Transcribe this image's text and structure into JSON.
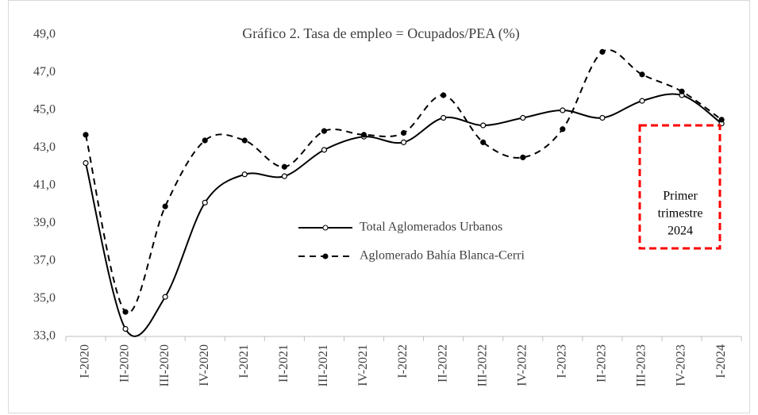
{
  "chart_data": {
    "type": "line",
    "title": "Gráfico  2. Tasa de empleo  = Ocupados/PEA  (%)",
    "categories": [
      "I-2020",
      "II-2020",
      "III-2020",
      "IV-2020",
      "I-2021",
      "II-2021",
      "III-2021",
      "IV-2021",
      "I-2022",
      "II-2022",
      "III-2022",
      "IV-2022",
      "I-2023",
      "II-2023",
      "III-2023",
      "IV-2023",
      "I-2024"
    ],
    "series": [
      {
        "name": "Total Aglomerados Urbanos",
        "color": "#000000",
        "dash": false,
        "marker": "open",
        "values": [
          42.2,
          33.4,
          35.1,
          40.1,
          41.6,
          41.5,
          42.9,
          43.6,
          43.3,
          44.6,
          44.2,
          44.6,
          45.0,
          44.6,
          45.5,
          45.8,
          44.3
        ]
      },
      {
        "name": "Aglomerado Bahía Blanca-Cerri",
        "color": "#000000",
        "dash": true,
        "marker": "filled",
        "values": [
          43.7,
          34.3,
          39.9,
          43.4,
          43.4,
          42.0,
          43.9,
          43.7,
          43.8,
          45.8,
          43.3,
          42.5,
          44.0,
          48.1,
          46.9,
          46.0,
          44.5
        ]
      }
    ],
    "ylim": [
      33,
      49
    ],
    "yticks": [
      {
        "value": 33,
        "label": "33,0"
      },
      {
        "value": 35,
        "label": "35,0"
      },
      {
        "value": 37,
        "label": "37,0"
      },
      {
        "value": 39,
        "label": "39,0"
      },
      {
        "value": 41,
        "label": "41,0"
      },
      {
        "value": 43,
        "label": "43,0"
      },
      {
        "value": 45,
        "label": "45,0"
      },
      {
        "value": 47,
        "label": "47,0"
      },
      {
        "value": 49,
        "label": "49,0"
      }
    ],
    "grid": false,
    "annotation": {
      "lines": [
        "Primer",
        "trimestre",
        "2024"
      ],
      "color": "#ff0000"
    }
  }
}
